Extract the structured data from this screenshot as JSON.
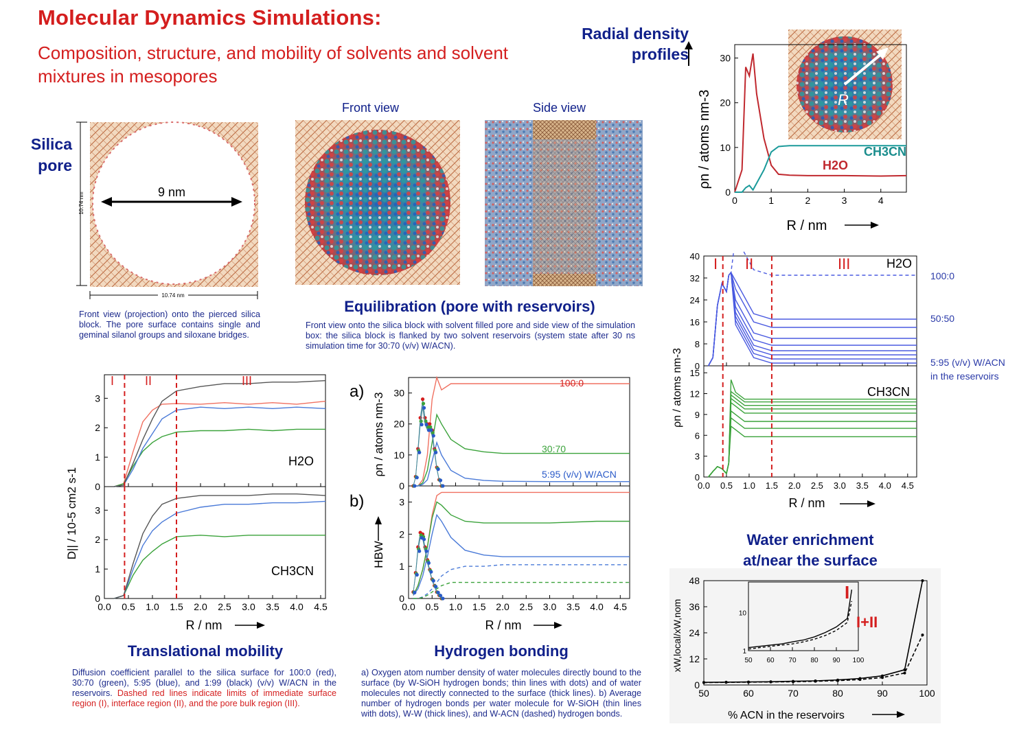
{
  "title": "Molecular Dynamics Simulations:",
  "subtitle": "Composition, structure, and mobility of solvents and solvent mixtures in mesopores",
  "silica": {
    "label": "Silica pore",
    "diameter": "9 nm",
    "dim_v": "10.74 nm",
    "dim_h": "10.74 nm",
    "caption": "Front view (projection) onto the pierced silica block. The pore surface contains single and geminal silanol groups and siloxane bridges."
  },
  "equilibration": {
    "front_label": "Front view",
    "side_label": "Side view",
    "heading": "Equilibration (pore with reservoirs)",
    "caption": "Front view onto the silica block with solvent filled pore and side view of the simulation box: the silica block is flanked by two solvent reservoirs (system state after 30 ns simulation time for 30:70 (v/v) W/ACN)."
  },
  "radial": {
    "label_line1": "Radial density",
    "label_line2": "profiles",
    "ylabel": "ρn / atoms nm-3",
    "xlabel": "R / nm",
    "series_h2o": "H2O",
    "series_acn": "CH3CN",
    "inset_r": "R"
  },
  "density_profiles": {
    "region_I": "I",
    "region_II": "II",
    "region_III": "III",
    "top_title": "H2O",
    "bottom_title": "CH3CN",
    "label_100": "100:0",
    "label_50": "50:50",
    "label_5": "5:95 (v/v) W/ACN",
    "label_reservoirs": "in the reservoirs",
    "ylabel": "ρn / atoms nm-3",
    "xlabel": "R / nm"
  },
  "water_enrichment": {
    "heading_line1": "Water enrichment",
    "heading_line2": "at/near the surface",
    "ylabel": "xW,local/xW,nom",
    "xlabel": "% ACN in the reservoirs",
    "inset_I": "I",
    "inset_III": "I+II"
  },
  "mobility": {
    "heading": "Translational mobility",
    "top_label": "H2O",
    "bottom_label": "CH3CN",
    "region_I": "I",
    "region_II": "II",
    "region_III": "III",
    "ylabel": "D|| / 10-5 cm2 s-1",
    "xlabel": "R / nm",
    "caption_blue": "Diffusion coefficient parallel to the silica surface for 100:0 (red), 30:70 (green), 5:95 (blue), and 1:99 (black) (v/v) W/ACN in the reservoirs.",
    "caption_red": "Dashed red lines indicate limits of immediate surface region (I), interface region (II), and the pore bulk region (III)."
  },
  "hbond": {
    "heading": "Hydrogen bonding",
    "panel_a": "a)",
    "panel_b": "b)",
    "label_100": "100:0",
    "label_30": "30:70",
    "label_5": "5:95 (v/v) W/ACN",
    "ylabel_a": "ρn / atoms nm-3",
    "ylabel_b": "HBW",
    "xlabel": "R / nm",
    "caption": "a) Oxygen atom number density of water molecules directly bound to the surface (by W-SiOH hydrogen bonds; thin lines with dots) and of water molecules not directly connected to the surface (thick lines). b) Average number of hydrogen bonds per water molecule for W-SiOH (thin lines with dots), W-W (thick lines), and W-ACN (dashed) hydrogen bonds."
  },
  "chart_data": [
    {
      "type": "line",
      "title": "",
      "xlabel": "R / nm",
      "ylabel": "ρn / atoms nm-3",
      "xlim": [
        0,
        4.7
      ],
      "ylim": [
        0,
        33
      ],
      "x": [
        0,
        0.2,
        0.3,
        0.4,
        0.5,
        0.6,
        0.8,
        1.0,
        1.2,
        1.5,
        2,
        3,
        4,
        4.7
      ],
      "series": [
        {
          "name": "H2O",
          "values": [
            0,
            5,
            28,
            26,
            31,
            22,
            12,
            6,
            4,
            3.8,
            3.7,
            3.7,
            3.6,
            3.7
          ]
        },
        {
          "name": "CH3CN",
          "values": [
            0,
            0,
            1,
            1.5,
            0.5,
            2,
            5,
            9,
            10.2,
            10.4,
            10.4,
            10.4,
            10.4,
            10.4
          ]
        }
      ]
    },
    {
      "type": "line",
      "title": "",
      "xlabel": "R / nm",
      "ylabel": "D|| / 10-5 cm2 s-1",
      "xlim": [
        0,
        4.6
      ],
      "ylim": [
        0,
        3.8
      ],
      "x": [
        0.2,
        0.4,
        0.6,
        0.8,
        1.0,
        1.2,
        1.5,
        2.0,
        2.5,
        3.0,
        3.5,
        4.0,
        4.6
      ],
      "series": [
        {
          "name": "100:0",
          "values": [
            0,
            0.1,
            1.2,
            2.2,
            2.6,
            2.8,
            2.82,
            2.8,
            2.85,
            2.8,
            2.85,
            2.8,
            2.9
          ]
        },
        {
          "name": "30:70",
          "values": [
            0,
            0.1,
            0.7,
            1.2,
            1.5,
            1.7,
            1.85,
            1.9,
            1.9,
            1.95,
            1.9,
            1.95,
            1.95
          ]
        },
        {
          "name": "5:95",
          "values": [
            0,
            0.05,
            0.6,
            1.3,
            1.8,
            2.3,
            2.6,
            2.7,
            2.65,
            2.7,
            2.65,
            2.7,
            2.65
          ]
        },
        {
          "name": "1:99",
          "values": [
            0,
            0.05,
            0.8,
            1.6,
            2.3,
            2.9,
            3.25,
            3.4,
            3.5,
            3.5,
            3.55,
            3.55,
            3.6
          ]
        }
      ]
    },
    {
      "type": "line",
      "title": "",
      "xlabel": "R / nm",
      "ylabel": "D|| / 10-5 cm2 s-1",
      "xlim": [
        0,
        4.6
      ],
      "ylim": [
        0,
        3.8
      ],
      "x": [
        0.2,
        0.4,
        0.6,
        0.8,
        1.0,
        1.2,
        1.5,
        2.0,
        2.5,
        3.0,
        3.5,
        4.0,
        4.6
      ],
      "series": [
        {
          "name": "30:70",
          "values": [
            0,
            0.1,
            0.8,
            1.3,
            1.6,
            1.85,
            2.1,
            2.15,
            2.1,
            2.15,
            2.15,
            2.15,
            2.15
          ]
        },
        {
          "name": "5:95",
          "values": [
            0,
            0.1,
            1.0,
            1.8,
            2.3,
            2.6,
            2.9,
            3.1,
            3.2,
            3.2,
            3.25,
            3.25,
            3.3
          ]
        },
        {
          "name": "1:99",
          "values": [
            0,
            0.1,
            1.2,
            2.2,
            2.8,
            3.2,
            3.4,
            3.5,
            3.5,
            3.5,
            3.55,
            3.55,
            3.5
          ]
        }
      ]
    },
    {
      "type": "line",
      "title": "",
      "xlabel": "R / nm",
      "ylabel": "ρn / atoms nm-3",
      "xlim": [
        0,
        4.7
      ],
      "ylim": [
        0,
        35
      ],
      "x": [
        0.1,
        0.2,
        0.3,
        0.4,
        0.5,
        0.6,
        0.7,
        0.9,
        1.2,
        1.6,
        2.0,
        3.0,
        4.0,
        4.7
      ],
      "series": [
        {
          "name": "100:0",
          "values": [
            0,
            0,
            2,
            10,
            28,
            35,
            31,
            33,
            33,
            33,
            33,
            33,
            33,
            33
          ]
        },
        {
          "name": "30:70",
          "values": [
            0,
            0,
            1,
            5,
            14,
            23,
            20,
            15,
            12,
            11,
            10.5,
            10.5,
            10.5,
            10.5
          ]
        },
        {
          "name": "5:95",
          "values": [
            0,
            0,
            0.5,
            2,
            8,
            14,
            10,
            5,
            2.5,
            1.8,
            1.5,
            1.4,
            1.4,
            1.4
          ]
        }
      ]
    },
    {
      "type": "line",
      "title": "",
      "xlabel": "R / nm",
      "ylabel": "HBW",
      "xlim": [
        0,
        4.7
      ],
      "ylim": [
        0,
        3.5
      ],
      "x": [
        0.1,
        0.2,
        0.3,
        0.4,
        0.5,
        0.6,
        0.7,
        0.9,
        1.2,
        1.6,
        2.0,
        3.0,
        4.0,
        4.7
      ],
      "series": [
        {
          "name": "100:0 W-W",
          "values": [
            0.1,
            0.4,
            0.9,
            1.6,
            2.6,
            3.2,
            3.3,
            3.3,
            3.3,
            3.3,
            3.3,
            3.3,
            3.3,
            3.3
          ]
        },
        {
          "name": "30:70 W-W",
          "values": [
            0.1,
            0.4,
            0.9,
            1.6,
            2.5,
            3.0,
            2.9,
            2.6,
            2.4,
            2.35,
            2.35,
            2.35,
            2.4,
            2.4
          ]
        },
        {
          "name": "5:95 W-W",
          "values": [
            0.1,
            0.3,
            0.7,
            1.3,
            2.0,
            2.6,
            2.4,
            1.9,
            1.5,
            1.35,
            1.3,
            1.3,
            1.3,
            1.3
          ]
        },
        {
          "name": "5:95 W-ACN",
          "values": [
            0,
            0,
            0.05,
            0.15,
            0.3,
            0.5,
            0.7,
            0.9,
            1.0,
            1.0,
            1.05,
            1.05,
            1.05,
            1.05
          ]
        },
        {
          "name": "30:70 W-ACN",
          "values": [
            0,
            0,
            0.03,
            0.1,
            0.2,
            0.3,
            0.4,
            0.5,
            0.5,
            0.5,
            0.5,
            0.5,
            0.5,
            0.5
          ]
        }
      ]
    },
    {
      "type": "line",
      "title": "",
      "xlabel": "% ACN in the reservoirs",
      "ylabel": "xW,local/xW,nom",
      "xlim": [
        50,
        100
      ],
      "ylim": [
        0,
        48
      ],
      "x": [
        50,
        55,
        60,
        65,
        70,
        75,
        80,
        85,
        90,
        95,
        99
      ],
      "series": [
        {
          "name": "I",
          "values": [
            1.2,
            1.3,
            1.4,
            1.5,
            1.7,
            1.9,
            2.3,
            3.0,
            4.2,
            7,
            48
          ]
        },
        {
          "name": "I+II",
          "values": [
            1.1,
            1.2,
            1.3,
            1.4,
            1.5,
            1.7,
            2.0,
            2.5,
            3.4,
            5.5,
            23
          ]
        }
      ]
    }
  ]
}
